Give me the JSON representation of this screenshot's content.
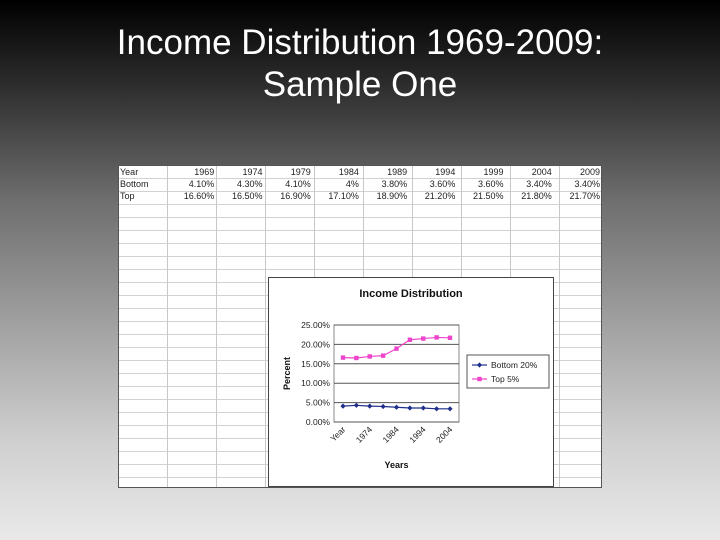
{
  "slide": {
    "title_line1": "Income Distribution 1969-2009:",
    "title_line2": "Sample One"
  },
  "table": {
    "rows": [
      {
        "label": "Year",
        "cells": [
          "1969",
          "1974",
          "1979",
          "1984",
          "1989",
          "1994",
          "1999",
          "2004",
          "2009"
        ]
      },
      {
        "label": "Bottom",
        "cells": [
          "4.10%",
          "4.30%",
          "4.10%",
          "4%",
          "3.80%",
          "3.60%",
          "3.60%",
          "3.40%",
          "3.40%"
        ]
      },
      {
        "label": "Top",
        "cells": [
          "16.60%",
          "16.50%",
          "16.90%",
          "17.10%",
          "18.90%",
          "21.20%",
          "21.50%",
          "21.80%",
          "21.70%"
        ]
      }
    ]
  },
  "chart_data": {
    "type": "line",
    "title": "Income Distribution",
    "xlabel": "Years",
    "ylabel": "Percent",
    "x_tick_labels": [
      "Year",
      "1974",
      "1984",
      "1994",
      "2004"
    ],
    "y_ticks": [
      "0.00%",
      "5.00%",
      "10.00%",
      "15.00%",
      "20.00%",
      "25.00%"
    ],
    "ylim": [
      0,
      25
    ],
    "grid": true,
    "legend_position": "right",
    "series": [
      {
        "name": "Bottom 20%",
        "color": "#1f2f8a",
        "marker": "diamond",
        "values": [
          4.1,
          4.3,
          4.1,
          4.0,
          3.8,
          3.6,
          3.6,
          3.4,
          3.4
        ]
      },
      {
        "name": "Top 5%",
        "color": "#ee44cc",
        "marker": "square",
        "values": [
          16.6,
          16.5,
          16.9,
          17.1,
          18.9,
          21.2,
          21.5,
          21.8,
          21.7
        ]
      }
    ]
  }
}
